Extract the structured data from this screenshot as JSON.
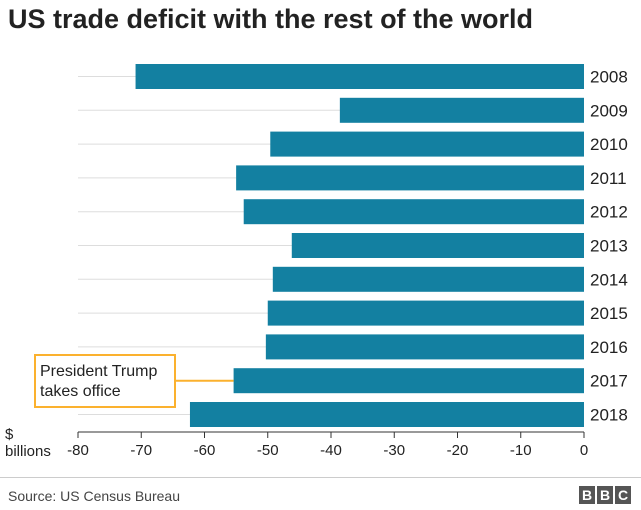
{
  "chart_data": {
    "type": "bar",
    "orientation": "horizontal",
    "title": "US trade deficit with the rest of the world",
    "xlabel_lines": [
      "$",
      "billions"
    ],
    "categories": [
      "2008",
      "2009",
      "2010",
      "2011",
      "2012",
      "2013",
      "2014",
      "2015",
      "2016",
      "2017",
      "2018"
    ],
    "values": [
      -70.9,
      -38.6,
      -49.6,
      -55.0,
      -53.8,
      -46.2,
      -49.2,
      -50.0,
      -50.3,
      -55.4,
      -62.3
    ],
    "xlim": [
      -80,
      0
    ],
    "xticks": [
      -80,
      -70,
      -60,
      -50,
      -40,
      -30,
      -20,
      -10,
      0
    ],
    "grid": true,
    "bar_color": "#1380a1",
    "annotation": {
      "lines": [
        "President Trump",
        "takes office"
      ],
      "target_category": "2017",
      "color": "#fbb12e"
    }
  },
  "footer": {
    "source": "Source: US Census Bureau",
    "logo_letters": [
      "B",
      "B",
      "C"
    ]
  }
}
